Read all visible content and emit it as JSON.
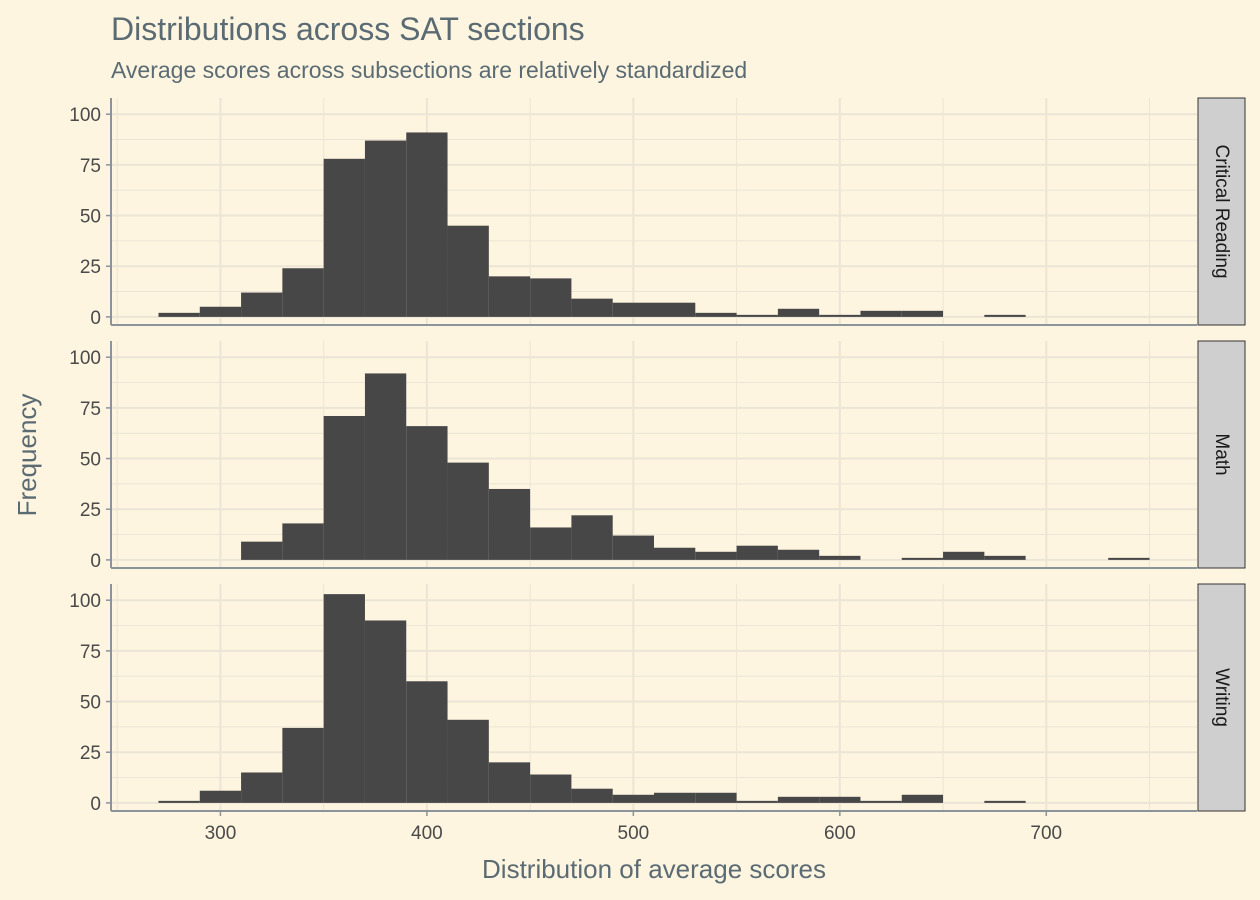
{
  "chart_data": {
    "type": "bar",
    "title": "Distributions across SAT sections",
    "subtitle": "Average scores across subsections are relatively standardized",
    "xlabel": "Distribution of average scores",
    "ylabel": "Frequency",
    "xlim": [
      247,
      773
    ],
    "ylim": [
      -4,
      108
    ],
    "x_ticks": [
      300,
      400,
      500,
      600,
      700
    ],
    "y_ticks": [
      0,
      25,
      50,
      75,
      100
    ],
    "bin_width": 20,
    "bin_starts": [
      270,
      290,
      310,
      330,
      350,
      370,
      390,
      410,
      430,
      450,
      470,
      490,
      510,
      530,
      550,
      570,
      590,
      610,
      630,
      650,
      670,
      690,
      710,
      730
    ],
    "grid": true,
    "facets": [
      {
        "name": "Critical Reading",
        "values": [
          2,
          5,
          12,
          24,
          78,
          87,
          91,
          45,
          20,
          19,
          9,
          7,
          7,
          2,
          1,
          4,
          1,
          3,
          3,
          0,
          1,
          0,
          0,
          0
        ]
      },
      {
        "name": "Math",
        "values": [
          0,
          0,
          9,
          18,
          71,
          92,
          66,
          48,
          35,
          16,
          22,
          12,
          6,
          4,
          7,
          5,
          2,
          0,
          1,
          4,
          2,
          0,
          0,
          1
        ]
      },
      {
        "name": "Writing",
        "values": [
          1,
          6,
          15,
          37,
          103,
          90,
          60,
          41,
          20,
          14,
          7,
          4,
          5,
          5,
          1,
          3,
          3,
          1,
          4,
          0,
          1,
          0,
          0,
          0
        ]
      }
    ],
    "colors": {
      "background": "#fdf5e0",
      "bar": "#474747",
      "grid": "#ece5d5",
      "axis": "#8a9499",
      "strip_fill": "#cfcfcf",
      "strip_border": "#333333"
    }
  }
}
